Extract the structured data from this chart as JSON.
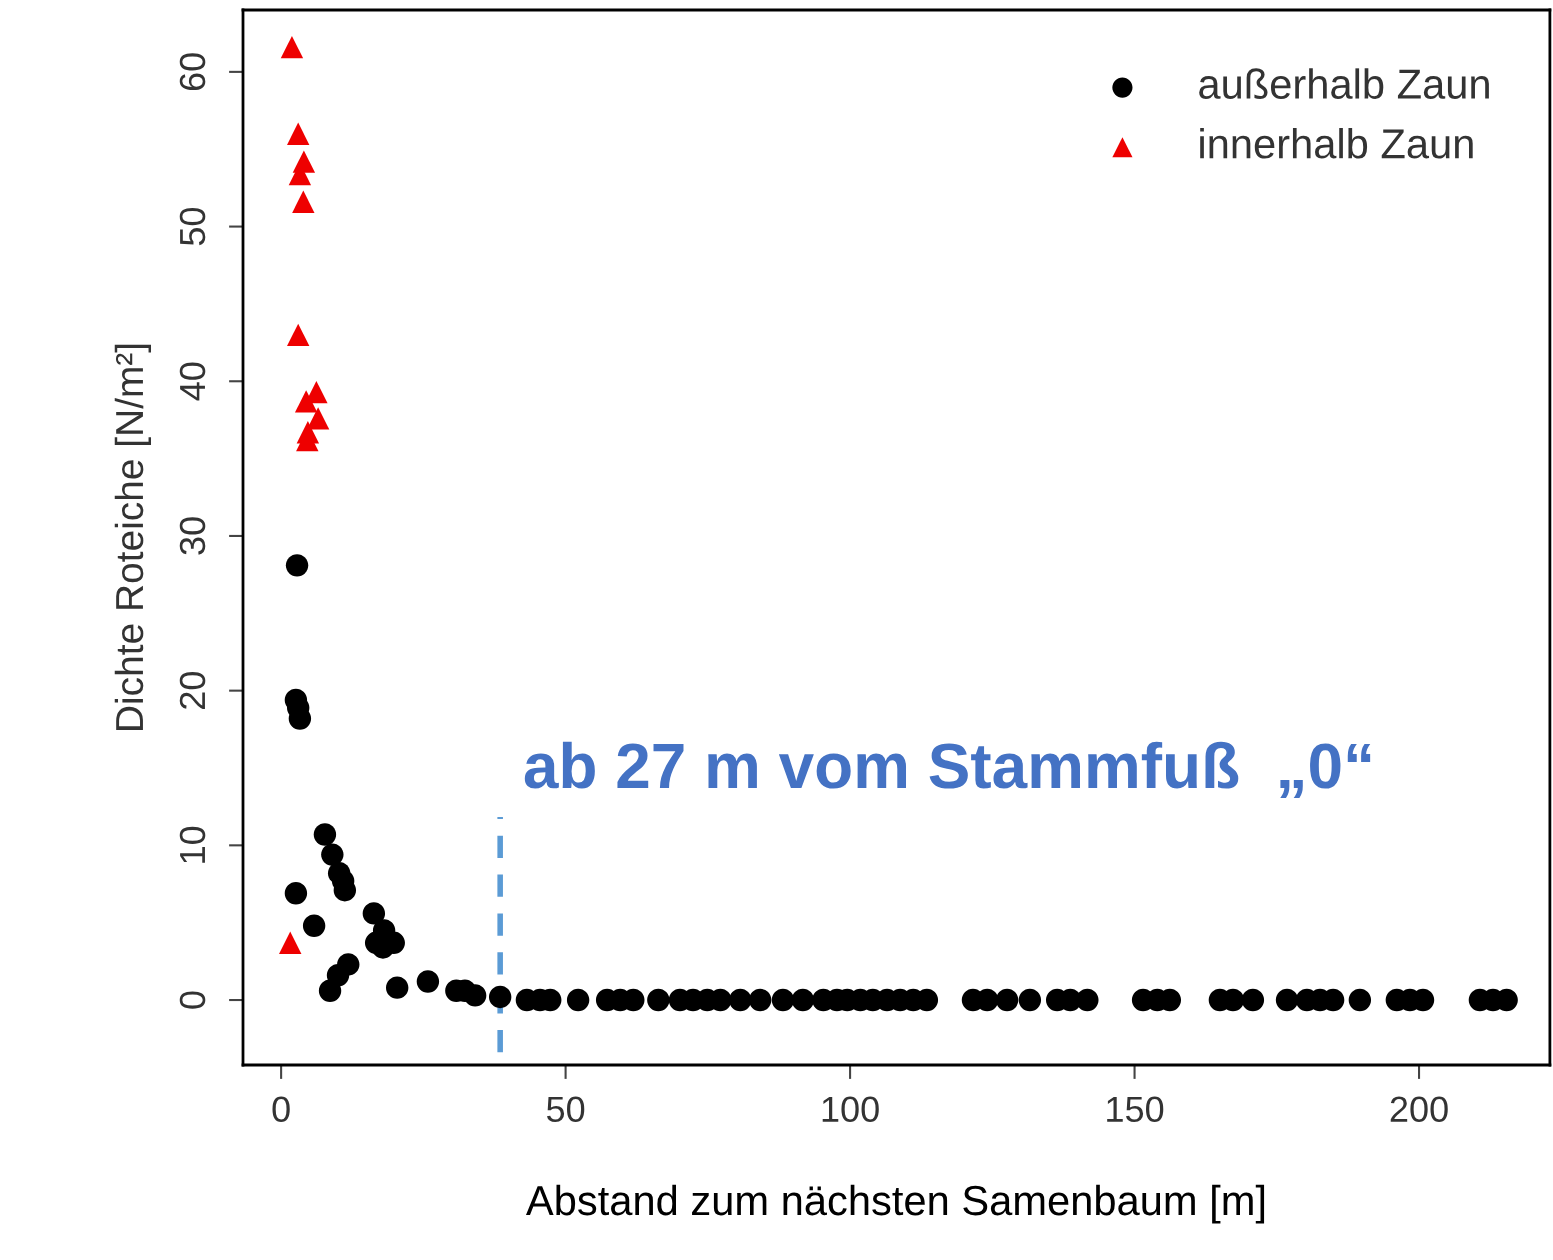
{
  "chart_data": {
    "type": "scatter",
    "xlabel": "Abstand zum nächsten Samenbaum [m]",
    "ylabel": "Dichte Roteiche [N/m²]",
    "xlim": [
      -6.7,
      223
    ],
    "ylim": [
      -4.2,
      64
    ],
    "xticks": [
      0,
      50,
      100,
      150,
      200
    ],
    "yticks": [
      0,
      10,
      20,
      30,
      40,
      50,
      60
    ],
    "grid": false,
    "legend": "top right",
    "series": [
      {
        "name": "außerhalb Zaun",
        "color": "#000000",
        "marker": "circle",
        "x": [
          2.8,
          2.6,
          3.0,
          3.3,
          7.7,
          9.0,
          10.2,
          10.9,
          11.2,
          2.6,
          5.8,
          16.3,
          18.1,
          16.7,
          17.9,
          19.8,
          11.8,
          10.0,
          8.6,
          20.4,
          25.8,
          30.8,
          32.3,
          34.1,
          38.5,
          43.2,
          45.5,
          47.3,
          52.2,
          57.3,
          59.6,
          61.9,
          66.3,
          70.1,
          72.4,
          74.9,
          77.2,
          80.7,
          84.2,
          88.2,
          91.7,
          95.3,
          97.7,
          99.5,
          101.8,
          104.0,
          106.5,
          108.8,
          111.1,
          113.5,
          121.6,
          124.1,
          127.6,
          131.6,
          136.4,
          138.7,
          141.7,
          151.5,
          154.0,
          156.2,
          165.0,
          167.3,
          170.8,
          176.8,
          180.3,
          182.6,
          184.9,
          189.6,
          196.1,
          198.4,
          200.7,
          210.7,
          213.0,
          215.4
        ],
        "values": [
          28.1,
          19.4,
          18.9,
          18.2,
          10.7,
          9.4,
          8.2,
          7.7,
          7.1,
          6.9,
          4.8,
          5.6,
          4.5,
          3.7,
          3.4,
          3.7,
          2.3,
          1.6,
          0.6,
          0.8,
          1.2,
          0.6,
          0.6,
          0.3,
          0.2,
          0,
          0,
          0,
          0,
          0,
          0,
          0,
          0,
          0,
          0,
          0,
          0,
          0,
          0,
          0,
          0,
          0,
          0,
          0,
          0,
          0,
          0,
          0,
          0,
          0,
          0,
          0,
          0,
          0,
          0,
          0,
          0,
          0,
          0,
          0,
          0,
          0,
          0,
          0,
          0,
          0,
          0,
          0,
          0,
          0,
          0,
          0,
          0,
          0
        ]
      },
      {
        "name": "innerhalb Zaun",
        "color": "#ee0000",
        "marker": "triangle",
        "x": [
          1.9,
          3.0,
          4.0,
          3.3,
          3.9,
          3.0,
          6.2,
          4.4,
          6.5,
          4.7,
          4.6,
          1.6
        ],
        "values": [
          61.6,
          56.0,
          54.2,
          53.4,
          51.6,
          43.0,
          39.3,
          38.7,
          37.6,
          36.7,
          36.2,
          3.7
        ]
      }
    ],
    "ref_lines": [
      {
        "axis": "x",
        "value": 38.5,
        "label": "ab 27 m vom Stammfuß  „0“",
        "color": "#5b9bd5",
        "line_style": "dashed"
      }
    ]
  }
}
